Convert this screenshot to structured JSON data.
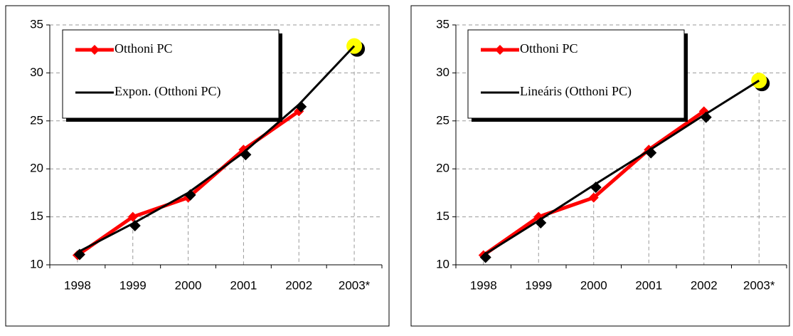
{
  "chart_data": [
    {
      "type": "line",
      "categories": [
        "1998",
        "1999",
        "2000",
        "2001",
        "2002",
        "2003*"
      ],
      "series": [
        {
          "name": "Otthoni PC",
          "color": "#ff0000",
          "values": [
            11,
            15,
            17,
            22,
            26,
            null
          ]
        },
        {
          "name": "Expon. (Otthoni PC)",
          "color": "#000000",
          "forecast_color": "#ffff00",
          "values": [
            11.3,
            14.3,
            17.5,
            21.7,
            26.7,
            32.8
          ]
        }
      ],
      "ylim": [
        10,
        35
      ],
      "yticks": [
        10,
        15,
        20,
        25,
        30,
        35
      ],
      "grid": true,
      "legend": "upper left"
    },
    {
      "type": "line",
      "categories": [
        "1998",
        "1999",
        "2000",
        "2001",
        "2002",
        "2003*"
      ],
      "series": [
        {
          "name": "Otthoni PC",
          "color": "#ff0000",
          "values": [
            11,
            15,
            17,
            22,
            26,
            null
          ]
        },
        {
          "name": "Lineáris (Otthoni PC)",
          "color": "#000000",
          "forecast_color": "#ffff00",
          "values": [
            11,
            14.6,
            18.3,
            21.9,
            25.6,
            29.2
          ]
        }
      ],
      "ylim": [
        10,
        35
      ],
      "yticks": [
        10,
        15,
        20,
        25,
        30,
        35
      ],
      "grid": true,
      "legend": "upper left"
    }
  ]
}
